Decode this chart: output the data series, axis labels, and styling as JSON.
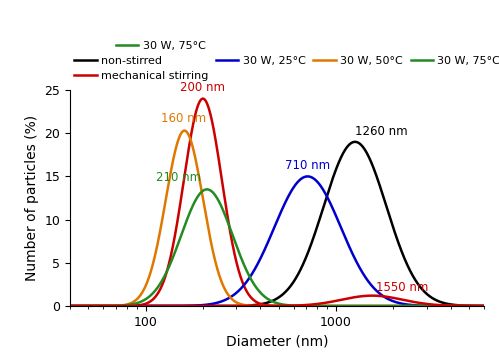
{
  "xlabel": "Diameter (nm)",
  "ylabel": "Number of particles (%)",
  "ylim": [
    0,
    25
  ],
  "yticks": [
    0,
    5,
    10,
    15,
    20,
    25
  ],
  "xlim": [
    40,
    6000
  ],
  "curves": [
    {
      "label": "non-stirred",
      "color": "#000000",
      "peak": 1260,
      "amplitude": 19.0,
      "sigma_log": 0.165,
      "annotation": "1260 nm",
      "ann_x": 1260,
      "ann_y": 19.4,
      "ann_ha": "left",
      "ann_color": "#000000"
    },
    {
      "label": "mechanical stirring",
      "color": "#cc0000",
      "peak": 200,
      "amplitude": 24.0,
      "sigma_log": 0.1,
      "annotation": "200 nm",
      "ann_x": 200,
      "ann_y": 24.5,
      "ann_ha": "center",
      "ann_color": "#cc0000"
    },
    {
      "label": "30 W, 25°C",
      "color": "#0000cc",
      "peak": 710,
      "amplitude": 15.0,
      "sigma_log": 0.175,
      "annotation": "710 nm",
      "ann_x": 710,
      "ann_y": 15.5,
      "ann_ha": "center",
      "ann_color": "#0000cc"
    },
    {
      "label": "30 W, 50°C",
      "color": "#e07800",
      "peak": 160,
      "amplitude": 20.3,
      "sigma_log": 0.098,
      "annotation": "160 nm",
      "ann_x": 158,
      "ann_y": 21.0,
      "ann_ha": "center",
      "ann_color": "#e07800"
    },
    {
      "label": "30 W, 75°C",
      "color": "#228B22",
      "peak": 210,
      "amplitude": 13.5,
      "sigma_log": 0.135,
      "annotation": "210 nm",
      "ann_x": 195,
      "ann_y": 14.1,
      "ann_ha": "right",
      "ann_color": "#228B22"
    }
  ],
  "extra_curves": [
    {
      "color": "#cc0000",
      "peak": 1550,
      "amplitude": 1.2,
      "sigma_log": 0.16,
      "annotation": "1550 nm",
      "ann_x": 1620,
      "ann_y": 1.4,
      "ann_ha": "left",
      "ann_color": "#cc0000"
    }
  ],
  "linewidth": 1.8
}
